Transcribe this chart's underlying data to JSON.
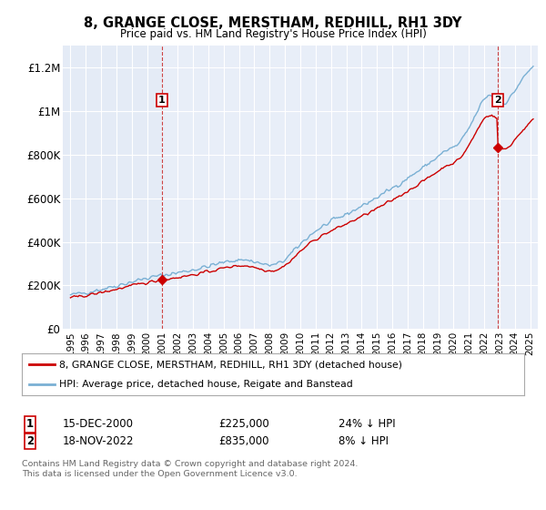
{
  "title": "8, GRANGE CLOSE, MERSTHAM, REDHILL, RH1 3DY",
  "subtitle": "Price paid vs. HM Land Registry's House Price Index (HPI)",
  "ylim": [
    0,
    1300000
  ],
  "yticks": [
    0,
    200000,
    400000,
    600000,
    800000,
    1000000,
    1200000
  ],
  "ytick_labels": [
    "£0",
    "£200K",
    "£400K",
    "£600K",
    "£800K",
    "£1M",
    "£1.2M"
  ],
  "background_color": "#ffffff",
  "plot_bg_color": "#e8eef8",
  "plot_bg_color_left": "#f0f0f0",
  "grid_color": "#ffffff",
  "annotation1_date": "15-DEC-2000",
  "annotation1_price": "£225,000",
  "annotation1_hpi": "24% ↓ HPI",
  "annotation2_date": "18-NOV-2022",
  "annotation2_price": "£835,000",
  "annotation2_hpi": "8% ↓ HPI",
  "legend_entry1": "8, GRANGE CLOSE, MERSTHAM, REDHILL, RH1 3DY (detached house)",
  "legend_entry2": "HPI: Average price, detached house, Reigate and Banstead",
  "footer1": "Contains HM Land Registry data © Crown copyright and database right 2024.",
  "footer2": "This data is licensed under the Open Government Licence v3.0.",
  "sale_color": "#cc0000",
  "hpi_color": "#7ab0d4",
  "vline_color": "#cc4444",
  "marker_box_color": "#cc0000",
  "sale_year1": 2000.958,
  "sale_year2": 2022.875,
  "sale_price1": 225000,
  "sale_price2": 835000,
  "xmin": 1994.5,
  "xmax": 2025.5
}
